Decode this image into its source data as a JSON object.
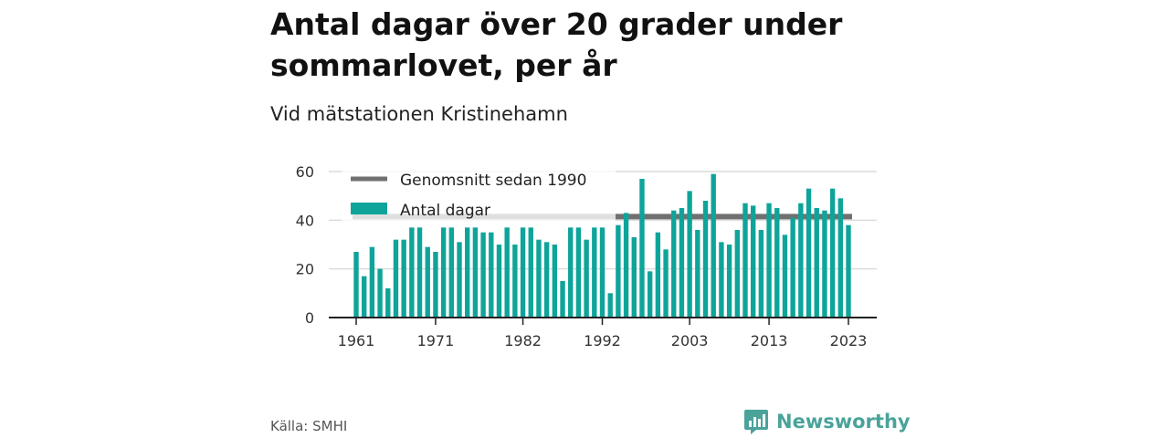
{
  "title": "Antal dagar över 20 grader under sommarlovet, per år",
  "subtitle": "Vid mätstationen Kristinehamn",
  "source": "Källa: SMHI",
  "brand": {
    "name": "Newsworthy",
    "icon": "newsworthy-logo-icon"
  },
  "colors": {
    "bar": "#0fa49a",
    "average": "#707070",
    "grid": "#dcdcdc",
    "axis": "#222222",
    "brand": "#4aa39a"
  },
  "chart_data": {
    "type": "bar",
    "title": "Antal dagar över 20 grader under sommarlovet, per år",
    "subtitle": "Vid mätstationen Kristinehamn",
    "xlabel": "",
    "ylabel": "",
    "ylim": [
      0,
      60
    ],
    "yticks": [
      0,
      20,
      40,
      60
    ],
    "xticks": [
      1961,
      1971,
      1982,
      1992,
      2003,
      2013,
      2023
    ],
    "grid": true,
    "legend_position": "top-left",
    "legend": [
      "Genomsnitt sedan 1990",
      "Antal dagar"
    ],
    "x": [
      1961,
      1962,
      1963,
      1964,
      1965,
      1966,
      1967,
      1968,
      1969,
      1970,
      1971,
      1972,
      1973,
      1974,
      1975,
      1976,
      1977,
      1978,
      1979,
      1980,
      1981,
      1982,
      1983,
      1984,
      1985,
      1986,
      1987,
      1988,
      1989,
      1990,
      1991,
      1992,
      1993,
      1994,
      1995,
      1996,
      1997,
      1998,
      1999,
      2000,
      2001,
      2002,
      2003,
      2004,
      2005,
      2006,
      2007,
      2008,
      2009,
      2010,
      2011,
      2012,
      2013,
      2014,
      2015,
      2016,
      2017,
      2018,
      2019,
      2020,
      2021,
      2022,
      2023
    ],
    "series": [
      {
        "name": "Antal dagar",
        "values": [
          27,
          17,
          29,
          20,
          12,
          32,
          32,
          37,
          37,
          29,
          27,
          37,
          37,
          31,
          37,
          37,
          35,
          35,
          30,
          37,
          30,
          37,
          37,
          32,
          31,
          30,
          15,
          37,
          37,
          32,
          37,
          37,
          10,
          38,
          43,
          33,
          57,
          19,
          35,
          28,
          44,
          45,
          52,
          36,
          48,
          59,
          31,
          30,
          36,
          47,
          46,
          36,
          47,
          45,
          34,
          41,
          47,
          53,
          45,
          44,
          53,
          49,
          38
        ]
      },
      {
        "name": "Genomsnitt sedan 1990",
        "type": "line",
        "value": 41.5,
        "from": 1961,
        "to": 2023
      }
    ]
  }
}
